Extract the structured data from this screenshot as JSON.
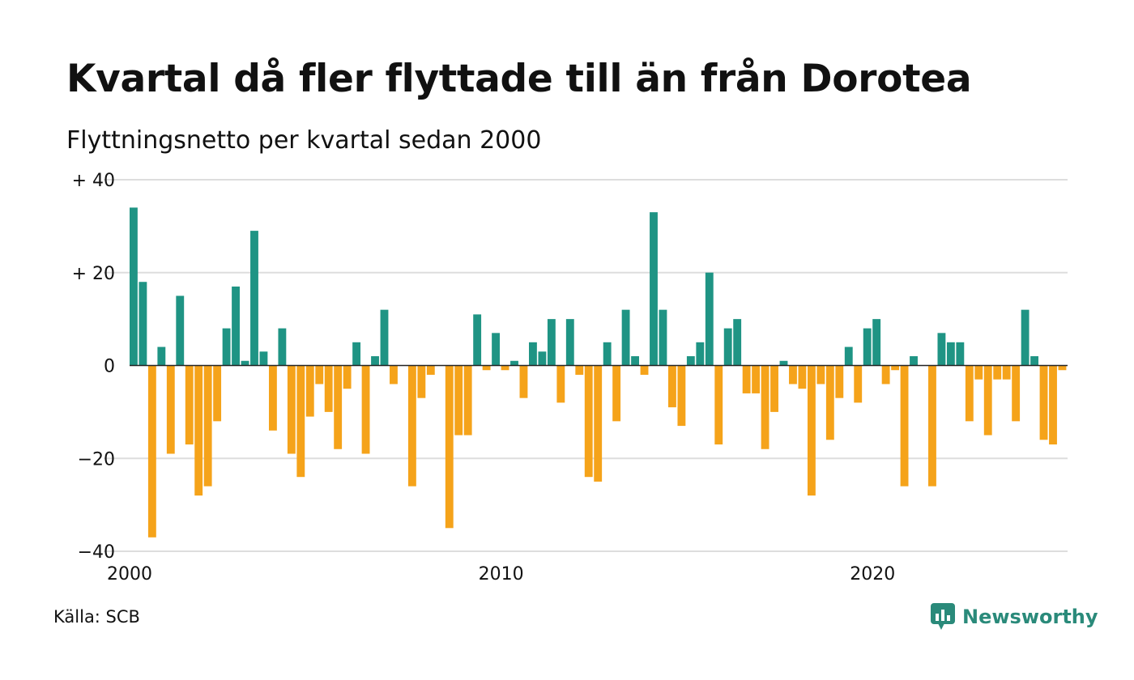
{
  "title": "Kvartal då fler flyttade till än från Dorotea",
  "subtitle": "Flyttningsnetto per kvartal sedan 2000",
  "source": "Källa: SCB",
  "brand": {
    "name": "Newsworthy",
    "color": "#2a8a7a",
    "icon": "newsworthy-logo-icon"
  },
  "colors": {
    "positive": "#1f9484",
    "negative": "#f5a31a",
    "grid": "#dddddd",
    "zero": "#222222"
  },
  "chart_data": {
    "type": "bar",
    "x_ticks": [
      "2000",
      "2010",
      "2020"
    ],
    "y_ticks": [
      "+ 40",
      "+ 20",
      "0",
      "−20",
      "−40"
    ],
    "y_tick_values": [
      40,
      20,
      0,
      -20,
      -40
    ],
    "ylim": [
      -40,
      40
    ],
    "grid": true,
    "start_year": 2000,
    "values": [
      34,
      18,
      -37,
      4,
      -19,
      15,
      -17,
      -28,
      -26,
      -12,
      8,
      17,
      1,
      29,
      3,
      -14,
      8,
      -19,
      -24,
      -11,
      -4,
      -10,
      -18,
      -5,
      5,
      -19,
      2,
      12,
      -4,
      0,
      -26,
      -7,
      -2,
      0,
      -35,
      -15,
      -15,
      11,
      -1,
      7,
      -1,
      1,
      -7,
      5,
      3,
      10,
      -8,
      10,
      -2,
      -24,
      -25,
      5,
      -12,
      12,
      2,
      -2,
      33,
      12,
      -9,
      -13,
      2,
      5,
      20,
      -17,
      8,
      10,
      -6,
      -6,
      -18,
      -10,
      1,
      -4,
      -5,
      -28,
      -4,
      -16,
      -7,
      4,
      -8,
      8,
      10,
      -4,
      -1,
      -26,
      2,
      0,
      -26,
      7,
      5,
      5,
      -12,
      -3,
      -15,
      -3,
      -3,
      -12,
      12,
      2,
      -16,
      -17,
      -1
    ]
  }
}
